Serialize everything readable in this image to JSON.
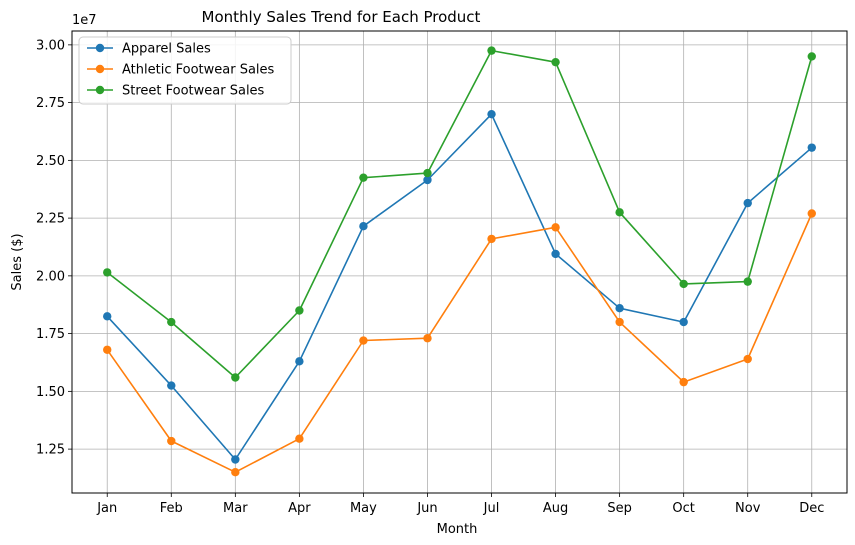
{
  "chart_data": {
    "type": "line",
    "title": "Monthly Sales Trend for Each Product",
    "xlabel": "Month",
    "ylabel": "Sales ($)",
    "y_offset_label": "1e7",
    "categories": [
      "Jan",
      "Feb",
      "Mar",
      "Apr",
      "May",
      "Jun",
      "Jul",
      "Aug",
      "Sep",
      "Oct",
      "Nov",
      "Dec"
    ],
    "ylim": [
      10.6,
      30.6
    ],
    "yticks": [
      12.5,
      15.0,
      17.5,
      20.0,
      22.5,
      25.0,
      27.5,
      30.0
    ],
    "ytick_labels": [
      "1.25",
      "1.50",
      "1.75",
      "2.00",
      "2.25",
      "2.50",
      "2.75",
      "3.00"
    ],
    "grid": true,
    "legend_position": "top-left",
    "series": [
      {
        "name": "Apparel Sales",
        "color": "#1f77b4",
        "values": [
          18.25,
          15.25,
          12.05,
          16.3,
          22.15,
          24.15,
          27.0,
          20.95,
          18.6,
          18.0,
          23.15,
          25.55
        ]
      },
      {
        "name": "Athletic Footwear Sales",
        "color": "#ff7f0e",
        "values": [
          16.8,
          12.85,
          11.5,
          12.95,
          17.2,
          17.3,
          21.6,
          22.1,
          18.0,
          15.4,
          16.4,
          22.7
        ]
      },
      {
        "name": "Street Footwear Sales",
        "color": "#2ca02c",
        "values": [
          20.15,
          18.0,
          15.6,
          18.5,
          24.25,
          24.45,
          29.75,
          29.25,
          22.75,
          19.65,
          19.75,
          29.5
        ]
      }
    ]
  }
}
